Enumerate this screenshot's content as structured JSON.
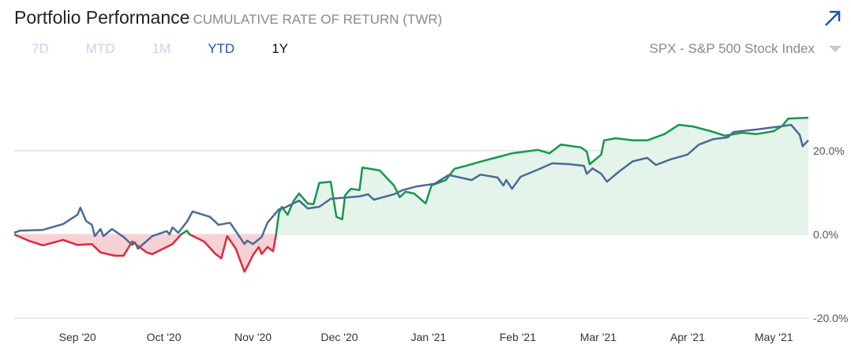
{
  "header": {
    "title": "Portfolio Performance",
    "subtitle": "CUMULATIVE RATE OF RETURN (TWR)",
    "expand_icon": "arrow-up-right-icon"
  },
  "tabs": [
    {
      "label": "7D",
      "state": "disabled"
    },
    {
      "label": "MTD",
      "state": "disabled"
    },
    {
      "label": "1M",
      "state": "disabled"
    },
    {
      "label": "YTD",
      "state": "active"
    },
    {
      "label": "1Y",
      "state": "current"
    }
  ],
  "benchmark": {
    "selected": "SPX - S&P 500 Stock Index",
    "icon": "caret-down-icon"
  },
  "colors": {
    "portfolio_positive": "#13994a",
    "portfolio_negative": "#dd2a3b",
    "portfolio_positive_fill": "#e4f4ea",
    "portfolio_negative_fill": "#f8d1d5",
    "benchmark": "#4b6a98",
    "grid": "#e4e4e4"
  },
  "chart_data": {
    "type": "line",
    "title": "",
    "xlabel": "",
    "ylabel": "",
    "xlim": [
      "2020-08-10",
      "2021-05-13"
    ],
    "ylim": [
      -20,
      30
    ],
    "grid": true,
    "legend": "none",
    "y_ticks": [
      {
        "value": 20,
        "label": "20.0%"
      },
      {
        "value": 0,
        "label": "0.0%"
      },
      {
        "value": -20,
        "label": "-20.0%"
      }
    ],
    "x_ticks": [
      {
        "date": "2020-09-01",
        "label": "Sep '20"
      },
      {
        "date": "2020-10-01",
        "label": "Oct '20"
      },
      {
        "date": "2020-11-01",
        "label": "Nov '20"
      },
      {
        "date": "2020-12-01",
        "label": "Dec '20"
      },
      {
        "date": "2021-01-01",
        "label": "Jan '21"
      },
      {
        "date": "2021-02-01",
        "label": "Feb '21"
      },
      {
        "date": "2021-03-01",
        "label": "Mar '21"
      },
      {
        "date": "2021-04-01",
        "label": "Apr '21"
      },
      {
        "date": "2021-05-01",
        "label": "May '21"
      }
    ],
    "series": [
      {
        "role": "portfolio",
        "points": [
          [
            "2020-08-10",
            0
          ],
          [
            "2020-08-15",
            -1.5
          ],
          [
            "2020-08-20",
            -2.6
          ],
          [
            "2020-08-27",
            -1.3
          ],
          [
            "2020-09-01",
            -2.5
          ],
          [
            "2020-09-06",
            -2.3
          ],
          [
            "2020-09-09",
            -4.3
          ],
          [
            "2020-09-14",
            -5.1
          ],
          [
            "2020-09-17",
            -5.1
          ],
          [
            "2020-09-20",
            -1.7
          ],
          [
            "2020-09-25",
            -4.3
          ],
          [
            "2020-09-27",
            -4.7
          ],
          [
            "2020-10-04",
            -2.3
          ],
          [
            "2020-10-07",
            0
          ],
          [
            "2020-10-09",
            0.9
          ],
          [
            "2020-10-10",
            0
          ],
          [
            "2020-10-15",
            -1.7
          ],
          [
            "2020-10-19",
            -4.7
          ],
          [
            "2020-10-21",
            -5.7
          ],
          [
            "2020-10-23",
            -0.4
          ],
          [
            "2020-10-26",
            -3.4
          ],
          [
            "2020-10-29",
            -8.9
          ],
          [
            "2020-10-30",
            -7.7
          ],
          [
            "2020-11-01",
            -4.9
          ],
          [
            "2020-11-03",
            -3.0
          ],
          [
            "2020-11-04",
            -4.7
          ],
          [
            "2020-11-06",
            -3.0
          ],
          [
            "2020-11-08",
            -4.0
          ],
          [
            "2020-11-09",
            0
          ],
          [
            "2020-11-10",
            5.1
          ],
          [
            "2020-11-11",
            6.6
          ],
          [
            "2020-11-13",
            4.7
          ],
          [
            "2020-11-15",
            7.9
          ],
          [
            "2020-11-17",
            9.8
          ],
          [
            "2020-11-20",
            7.4
          ],
          [
            "2020-11-22",
            7.2
          ],
          [
            "2020-11-24",
            12.3
          ],
          [
            "2020-11-28",
            12.6
          ],
          [
            "2020-11-30",
            4.2
          ],
          [
            "2020-12-02",
            3.6
          ],
          [
            "2020-12-03",
            9.4
          ],
          [
            "2020-12-05",
            10.9
          ],
          [
            "2020-12-08",
            10.6
          ],
          [
            "2020-12-09",
            16.0
          ],
          [
            "2020-12-15",
            15.3
          ],
          [
            "2020-12-20",
            11.7
          ],
          [
            "2020-12-22",
            8.9
          ],
          [
            "2020-12-24",
            10.2
          ],
          [
            "2020-12-27",
            9.8
          ],
          [
            "2020-12-31",
            7.4
          ],
          [
            "2021-01-02",
            11.7
          ],
          [
            "2021-01-07",
            13.0
          ],
          [
            "2021-01-10",
            15.7
          ],
          [
            "2021-01-14",
            16.4
          ],
          [
            "2021-01-19",
            17.4
          ],
          [
            "2021-01-24",
            18.3
          ],
          [
            "2021-01-30",
            19.4
          ],
          [
            "2021-02-08",
            20.2
          ],
          [
            "2021-02-12",
            19.4
          ],
          [
            "2021-02-16",
            21.5
          ],
          [
            "2021-02-23",
            20.8
          ],
          [
            "2021-02-25",
            19.8
          ],
          [
            "2021-02-26",
            16.8
          ],
          [
            "2021-03-02",
            19.1
          ],
          [
            "2021-03-03",
            22.5
          ],
          [
            "2021-03-07",
            23.0
          ],
          [
            "2021-03-13",
            22.5
          ],
          [
            "2021-03-18",
            22.5
          ],
          [
            "2021-03-24",
            24.0
          ],
          [
            "2021-03-29",
            26.2
          ],
          [
            "2021-04-03",
            25.8
          ],
          [
            "2021-04-09",
            24.7
          ],
          [
            "2021-04-14",
            23.6
          ],
          [
            "2021-04-20",
            24.3
          ],
          [
            "2021-04-25",
            24.0
          ],
          [
            "2021-05-01",
            24.7
          ],
          [
            "2021-05-04",
            26.0
          ],
          [
            "2021-05-06",
            27.7
          ],
          [
            "2021-05-13",
            27.9
          ]
        ]
      },
      {
        "role": "benchmark",
        "name": "SPX - S&P 500 Stock Index",
        "points": [
          [
            "2020-08-10",
            0.4
          ],
          [
            "2020-08-12",
            0.9
          ],
          [
            "2020-08-20",
            1.1
          ],
          [
            "2020-08-27",
            2.5
          ],
          [
            "2020-09-01",
            4.7
          ],
          [
            "2020-09-02",
            6.4
          ],
          [
            "2020-09-04",
            3.2
          ],
          [
            "2020-09-06",
            2.3
          ],
          [
            "2020-09-07",
            -0.4
          ],
          [
            "2020-09-09",
            1.3
          ],
          [
            "2020-09-10",
            -0.4
          ],
          [
            "2020-09-13",
            1.3
          ],
          [
            "2020-09-17",
            -0.6
          ],
          [
            "2020-09-20",
            -2.5
          ],
          [
            "2020-09-21",
            -1.9
          ],
          [
            "2020-09-22",
            -3.4
          ],
          [
            "2020-09-27",
            -0.4
          ],
          [
            "2020-10-02",
            0.8
          ],
          [
            "2020-10-03",
            0
          ],
          [
            "2020-10-04",
            1.7
          ],
          [
            "2020-10-06",
            0.4
          ],
          [
            "2020-10-09",
            3.0
          ],
          [
            "2020-10-11",
            5.5
          ],
          [
            "2020-10-17",
            4.2
          ],
          [
            "2020-10-20",
            2.3
          ],
          [
            "2020-10-24",
            2.8
          ],
          [
            "2020-10-26",
            0.8
          ],
          [
            "2020-10-29",
            -2.3
          ],
          [
            "2020-10-30",
            -1.5
          ],
          [
            "2020-11-01",
            -2.3
          ],
          [
            "2020-11-04",
            -0.6
          ],
          [
            "2020-11-06",
            2.8
          ],
          [
            "2020-11-10",
            6.0
          ],
          [
            "2020-11-12",
            6.4
          ],
          [
            "2020-11-17",
            8.1
          ],
          [
            "2020-11-20",
            6.2
          ],
          [
            "2020-11-24",
            6.6
          ],
          [
            "2020-11-28",
            8.5
          ],
          [
            "2020-12-08",
            9.1
          ],
          [
            "2020-12-11",
            9.6
          ],
          [
            "2020-12-13",
            8.3
          ],
          [
            "2020-12-20",
            9.6
          ],
          [
            "2020-12-23",
            10.6
          ],
          [
            "2020-12-28",
            11.5
          ],
          [
            "2021-01-03",
            12.1
          ],
          [
            "2021-01-08",
            14.2
          ],
          [
            "2021-01-16",
            13.0
          ],
          [
            "2021-01-19",
            14.3
          ],
          [
            "2021-01-25",
            13.6
          ],
          [
            "2021-01-27",
            11.7
          ],
          [
            "2021-01-28",
            13.0
          ],
          [
            "2021-01-30",
            10.9
          ],
          [
            "2021-02-02",
            13.8
          ],
          [
            "2021-02-08",
            15.5
          ],
          [
            "2021-02-13",
            17.0
          ],
          [
            "2021-02-19",
            16.8
          ],
          [
            "2021-02-24",
            16.4
          ],
          [
            "2021-02-25",
            14.5
          ],
          [
            "2021-02-27",
            15.8
          ],
          [
            "2021-03-02",
            14.5
          ],
          [
            "2021-03-04",
            12.6
          ],
          [
            "2021-03-08",
            14.9
          ],
          [
            "2021-03-13",
            17.5
          ],
          [
            "2021-03-18",
            18.3
          ],
          [
            "2021-03-21",
            16.6
          ],
          [
            "2021-03-26",
            17.9
          ],
          [
            "2021-04-01",
            19.1
          ],
          [
            "2021-04-05",
            21.5
          ],
          [
            "2021-04-10",
            22.8
          ],
          [
            "2021-04-15",
            23.2
          ],
          [
            "2021-04-17",
            24.5
          ],
          [
            "2021-04-25",
            25.1
          ],
          [
            "2021-05-02",
            25.7
          ],
          [
            "2021-05-07",
            26.2
          ],
          [
            "2021-05-10",
            23.8
          ],
          [
            "2021-05-11",
            21.1
          ],
          [
            "2021-05-13",
            22.5
          ]
        ]
      }
    ]
  }
}
